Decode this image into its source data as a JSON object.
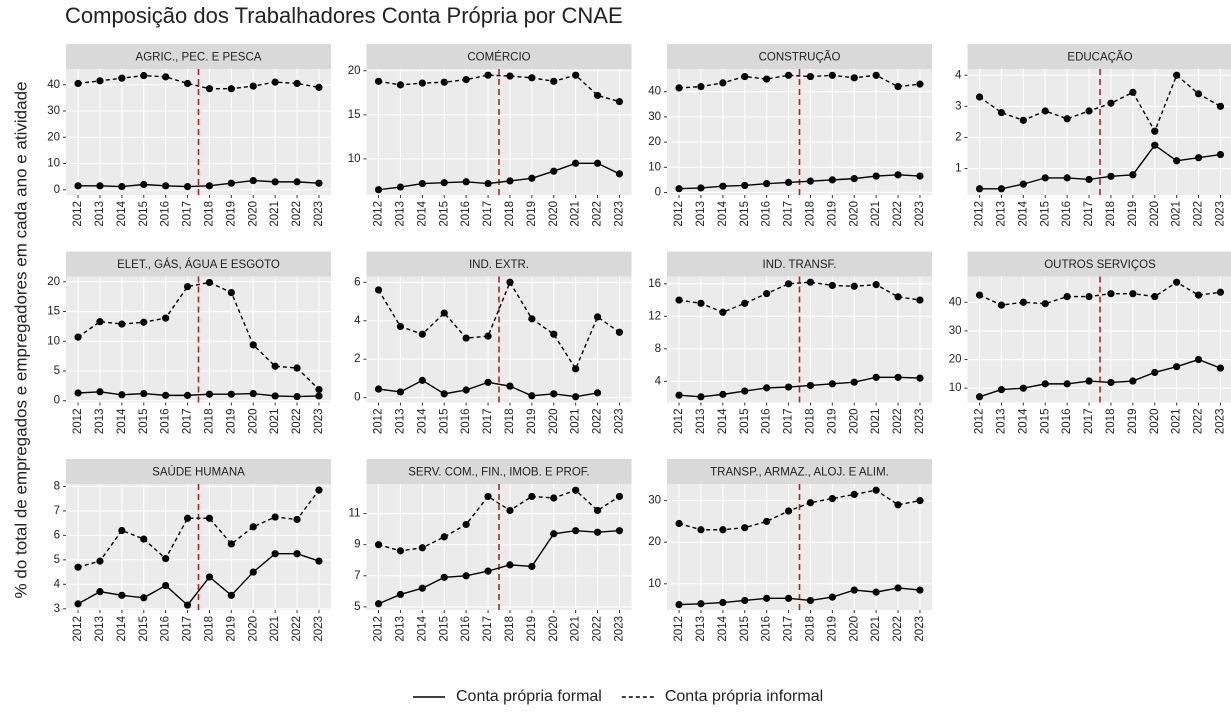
{
  "title": "Composição dos Trabalhadores Conta Própria por CNAE",
  "y_label": "% do total de empregados e empregadores em cada ano e atividade",
  "reference_line": {
    "x": 2017.5,
    "color": "#b22222"
  },
  "chart_data": [
    {
      "type": "line",
      "title": "AGRIC., PEC. E PESCA",
      "x": [
        2012,
        2013,
        2014,
        2015,
        2016,
        2017,
        2018,
        2019,
        2020,
        2021,
        2022,
        2023
      ],
      "xlim": [
        2011.45,
        2023.55
      ],
      "xticks": [
        2012,
        2013,
        2014,
        2015,
        2016,
        2017,
        2018,
        2019,
        2020,
        2021,
        2022,
        2023
      ],
      "ylim": [
        -2,
        46
      ],
      "yticks": [
        0,
        10,
        20,
        30,
        40
      ],
      "series": [
        {
          "name": "Conta própria formal",
          "color": "#000000",
          "dash": "solid",
          "values": [
            1.5,
            1.5,
            1.2,
            2,
            1.5,
            1.2,
            1.5,
            2.5,
            3.5,
            3,
            3,
            2.5
          ]
        },
        {
          "name": "Conta própria informal",
          "color": "#000000",
          "dash": "dashed",
          "values": [
            40.5,
            41.5,
            42.5,
            43.5,
            43,
            40.5,
            38.5,
            38.5,
            39.5,
            41,
            40.5,
            39
          ]
        }
      ]
    },
    {
      "type": "line",
      "title": "COMÉRCIO",
      "x": [
        2012,
        2013,
        2014,
        2015,
        2016,
        2017,
        2018,
        2019,
        2020,
        2021,
        2022,
        2023
      ],
      "xlim": [
        2011.45,
        2023.55
      ],
      "xticks": [
        2012,
        2013,
        2014,
        2015,
        2016,
        2017,
        2018,
        2019,
        2020,
        2021,
        2022,
        2023
      ],
      "ylim": [
        5.9,
        20.2
      ],
      "yticks": [
        10,
        15,
        20
      ],
      "series": [
        {
          "name": "Conta própria formal",
          "color": "#000000",
          "dash": "solid",
          "values": [
            6.5,
            6.8,
            7.2,
            7.3,
            7.4,
            7.2,
            7.5,
            7.8,
            8.6,
            9.5,
            9.5,
            8.3
          ]
        },
        {
          "name": "Conta própria informal",
          "color": "#000000",
          "dash": "dashed",
          "values": [
            18.8,
            18.4,
            18.6,
            18.7,
            19,
            19.5,
            19.4,
            19.2,
            18.8,
            19.5,
            17.2,
            16.5
          ]
        }
      ]
    },
    {
      "type": "line",
      "title": "CONSTRUÇÃO",
      "x": [
        2012,
        2013,
        2014,
        2015,
        2016,
        2017,
        2018,
        2019,
        2020,
        2021,
        2022,
        2023
      ],
      "xlim": [
        2011.45,
        2023.55
      ],
      "xticks": [
        2012,
        2013,
        2014,
        2015,
        2016,
        2017,
        2018,
        2019,
        2020,
        2021,
        2022,
        2023
      ],
      "ylim": [
        -1,
        49
      ],
      "yticks": [
        0,
        10,
        20,
        30,
        40
      ],
      "series": [
        {
          "name": "Conta própria formal",
          "color": "#000000",
          "dash": "solid",
          "values": [
            1.5,
            1.8,
            2.5,
            2.8,
            3.5,
            4,
            4.5,
            5,
            5.5,
            6.5,
            7,
            6.5
          ]
        },
        {
          "name": "Conta própria informal",
          "color": "#000000",
          "dash": "dashed",
          "values": [
            41.5,
            42,
            43.5,
            46,
            45,
            46.5,
            46,
            46.5,
            45.5,
            46.5,
            42,
            43
          ]
        }
      ]
    },
    {
      "type": "line",
      "title": "EDUCAÇÃO",
      "x": [
        2012,
        2013,
        2014,
        2015,
        2016,
        2017,
        2018,
        2019,
        2020,
        2021,
        2022,
        2023
      ],
      "xlim": [
        2011.45,
        2023.55
      ],
      "xticks": [
        2012,
        2013,
        2014,
        2015,
        2016,
        2017,
        2018,
        2019,
        2020,
        2021,
        2022,
        2023
      ],
      "ylim": [
        0.15,
        4.2
      ],
      "yticks": [
        1,
        2,
        3,
        4
      ],
      "series": [
        {
          "name": "Conta própria formal",
          "color": "#000000",
          "dash": "solid",
          "values": [
            0.35,
            0.35,
            0.5,
            0.7,
            0.7,
            0.65,
            0.75,
            0.8,
            1.75,
            1.25,
            1.35,
            1.45
          ]
        },
        {
          "name": "Conta própria informal",
          "color": "#000000",
          "dash": "dashed",
          "values": [
            3.3,
            2.8,
            2.55,
            2.85,
            2.6,
            2.85,
            3.1,
            3.45,
            2.2,
            4,
            3.4,
            3
          ]
        }
      ]
    },
    {
      "type": "line",
      "title": "ELET., GÁS, ÁGUA E ESGOTO",
      "x": [
        2012,
        2013,
        2014,
        2015,
        2016,
        2017,
        2018,
        2019,
        2020,
        2021,
        2022,
        2023
      ],
      "xlim": [
        2011.45,
        2023.55
      ],
      "xticks": [
        2012,
        2013,
        2014,
        2015,
        2016,
        2017,
        2018,
        2019,
        2020,
        2021,
        2022,
        2023
      ],
      "ylim": [
        -0.3,
        20.9
      ],
      "yticks": [
        0,
        5,
        10,
        15,
        20
      ],
      "series": [
        {
          "name": "Conta própria formal",
          "color": "#000000",
          "dash": "solid",
          "values": [
            1.3,
            1.5,
            1,
            1.2,
            0.9,
            0.9,
            1.1,
            1.1,
            1.2,
            0.8,
            0.7,
            0.8
          ]
        },
        {
          "name": "Conta própria informal",
          "color": "#000000",
          "dash": "dashed",
          "values": [
            10.7,
            13.3,
            12.9,
            13.2,
            13.9,
            19.2,
            19.9,
            18.2,
            9.4,
            5.8,
            5.5,
            1.9
          ]
        }
      ]
    },
    {
      "type": "line",
      "title": "IND. EXTR.",
      "x": [
        2012,
        2013,
        2014,
        2015,
        2016,
        2017,
        2018,
        2019,
        2020,
        2021,
        2022,
        2023
      ],
      "xlim": [
        2011.45,
        2023.55
      ],
      "xticks": [
        2012,
        2013,
        2014,
        2015,
        2016,
        2017,
        2018,
        2019,
        2020,
        2021,
        2022,
        2023
      ],
      "ylim": [
        -0.25,
        6.3
      ],
      "yticks": [
        0,
        2,
        4,
        6
      ],
      "series": [
        {
          "name": "Conta própria formal",
          "color": "#000000",
          "dash": "solid",
          "values": [
            0.45,
            0.3,
            0.9,
            0.2,
            0.4,
            0.8,
            0.6,
            0.1,
            0.2,
            0.05,
            0.25,
            null
          ]
        },
        {
          "name": "Conta própria informal",
          "color": "#000000",
          "dash": "dashed",
          "values": [
            5.6,
            3.7,
            3.3,
            4.4,
            3.1,
            3.2,
            6,
            4.1,
            3.3,
            1.5,
            4.2,
            3.4
          ]
        }
      ]
    },
    {
      "type": "line",
      "title": "IND. TRANSF.",
      "x": [
        2012,
        2013,
        2014,
        2015,
        2016,
        2017,
        2018,
        2019,
        2020,
        2021,
        2022,
        2023
      ],
      "xlim": [
        2011.45,
        2023.55
      ],
      "xticks": [
        2012,
        2013,
        2014,
        2015,
        2016,
        2017,
        2018,
        2019,
        2020,
        2021,
        2022,
        2023
      ],
      "ylim": [
        1.4,
        16.9
      ],
      "yticks": [
        4,
        8,
        12,
        16
      ],
      "series": [
        {
          "name": "Conta própria formal",
          "color": "#000000",
          "dash": "solid",
          "values": [
            2.3,
            2.1,
            2.4,
            2.8,
            3.2,
            3.3,
            3.5,
            3.7,
            3.9,
            4.5,
            4.5,
            4.4
          ]
        },
        {
          "name": "Conta própria informal",
          "color": "#000000",
          "dash": "dashed",
          "values": [
            14,
            13.6,
            12.5,
            13.6,
            14.8,
            16,
            16.2,
            15.8,
            15.7,
            15.9,
            14.4,
            14
          ]
        }
      ]
    },
    {
      "type": "line",
      "title": "OUTROS SERVIÇOS",
      "x": [
        2012,
        2013,
        2014,
        2015,
        2016,
        2017,
        2018,
        2019,
        2020,
        2021,
        2022,
        2023
      ],
      "xlim": [
        2011.45,
        2023.55
      ],
      "xticks": [
        2012,
        2013,
        2014,
        2015,
        2016,
        2017,
        2018,
        2019,
        2020,
        2021,
        2022,
        2023
      ],
      "ylim": [
        5,
        49
      ],
      "yticks": [
        10,
        20,
        30,
        40
      ],
      "series": [
        {
          "name": "Conta própria formal",
          "color": "#000000",
          "dash": "solid",
          "values": [
            7,
            9.5,
            10,
            11.5,
            11.5,
            12.5,
            12,
            12.5,
            15.5,
            17.5,
            20,
            17
          ]
        },
        {
          "name": "Conta própria informal",
          "color": "#000000",
          "dash": "dashed",
          "values": [
            42.5,
            39,
            40,
            39.5,
            42,
            42,
            43,
            43,
            42,
            47,
            42.5,
            43.5
          ]
        }
      ]
    },
    {
      "type": "line",
      "title": "SAÚDE HUMANA",
      "x": [
        2012,
        2013,
        2014,
        2015,
        2016,
        2017,
        2018,
        2019,
        2020,
        2021,
        2022,
        2023
      ],
      "xlim": [
        2011.45,
        2023.55
      ],
      "xticks": [
        2012,
        2013,
        2014,
        2015,
        2016,
        2017,
        2018,
        2019,
        2020,
        2021,
        2022,
        2023
      ],
      "ylim": [
        2.95,
        8.1
      ],
      "yticks": [
        3,
        4,
        5,
        6,
        7,
        8
      ],
      "series": [
        {
          "name": "Conta própria formal",
          "color": "#000000",
          "dash": "solid",
          "values": [
            3.2,
            3.7,
            3.55,
            3.45,
            3.95,
            3.15,
            4.3,
            3.55,
            4.5,
            5.25,
            5.25,
            4.95
          ]
        },
        {
          "name": "Conta própria informal",
          "color": "#000000",
          "dash": "dashed",
          "values": [
            4.7,
            4.95,
            6.2,
            5.85,
            5.05,
            6.7,
            6.7,
            5.65,
            6.35,
            6.75,
            6.65,
            7.85
          ]
        }
      ]
    },
    {
      "type": "line",
      "title": "SERV. COM., FIN., IMOB. E PROF.",
      "x": [
        2012,
        2013,
        2014,
        2015,
        2016,
        2017,
        2018,
        2019,
        2020,
        2021,
        2022,
        2023
      ],
      "xlim": [
        2011.45,
        2023.55
      ],
      "xticks": [
        2012,
        2013,
        2014,
        2015,
        2016,
        2017,
        2018,
        2019,
        2020,
        2021,
        2022,
        2023
      ],
      "ylim": [
        4.8,
        12.9
      ],
      "yticks": [
        5,
        7,
        9,
        11
      ],
      "series": [
        {
          "name": "Conta própria formal",
          "color": "#000000",
          "dash": "solid",
          "values": [
            5.2,
            5.8,
            6.2,
            6.9,
            7,
            7.3,
            7.7,
            7.6,
            9.7,
            9.9,
            9.8,
            9.9
          ]
        },
        {
          "name": "Conta própria informal",
          "color": "#000000",
          "dash": "dashed",
          "values": [
            9,
            8.6,
            8.8,
            9.5,
            10.3,
            12.1,
            11.2,
            12.1,
            12,
            12.5,
            11.2,
            12.1
          ]
        }
      ]
    },
    {
      "type": "line",
      "title": "TRANSP., ARMAZ., ALOJ. E ALIM.",
      "x": [
        2012,
        2013,
        2014,
        2015,
        2016,
        2017,
        2018,
        2019,
        2020,
        2021,
        2022,
        2023
      ],
      "xlim": [
        2011.45,
        2023.55
      ],
      "xticks": [
        2012,
        2013,
        2014,
        2015,
        2016,
        2017,
        2018,
        2019,
        2020,
        2021,
        2022,
        2023
      ],
      "ylim": [
        3.7,
        34
      ],
      "yticks": [
        10,
        20,
        30
      ],
      "series": [
        {
          "name": "Conta própria formal",
          "color": "#000000",
          "dash": "solid",
          "values": [
            5,
            5.2,
            5.5,
            6,
            6.5,
            6.5,
            6,
            6.8,
            8.5,
            8,
            9,
            8.5
          ]
        },
        {
          "name": "Conta própria informal",
          "color": "#000000",
          "dash": "dashed",
          "values": [
            24.5,
            23,
            23,
            23.5,
            25,
            27.5,
            29.5,
            30.5,
            31.5,
            32.5,
            29,
            30
          ]
        }
      ]
    }
  ]
}
